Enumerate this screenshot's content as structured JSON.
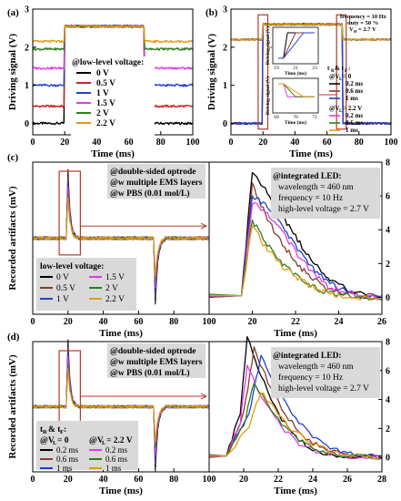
{
  "colors": {
    "black": "#000000",
    "red": "#cc2222",
    "blue": "#1f3fd6",
    "magenta": "#e23ae2",
    "green": "#2e7d1e",
    "orange": "#e69a12",
    "olive": "#8a8a1a",
    "brown": "#8b3a2a",
    "legendbg": "#d9d9d9",
    "box": "#b03a2a"
  },
  "panel_a": {
    "label": "(a)",
    "ylabel": "Driving signal (V)",
    "xlabel": "Time (ms)",
    "xticks": [
      "0",
      "20",
      "40",
      "60",
      "80",
      "100"
    ],
    "yticks": [
      "0",
      "1",
      "2",
      "3"
    ],
    "legend_title": "@low-level voltage:",
    "legend": [
      "0 V",
      "0.5 V",
      "1 V",
      "1.5 V",
      "2 V",
      "2.2 V"
    ]
  },
  "panel_b": {
    "label": "(b)",
    "ylabel": "Driving signal (V)",
    "xlabel": "Time (ms)",
    "xticks": [
      "0",
      "20",
      "40",
      "60",
      "80",
      "100"
    ],
    "yticks": [
      "0",
      "1",
      "2",
      "3"
    ],
    "info": [
      "frequency = 10 Hz",
      "duty = 50 %",
      "V",
      "= 2.7 V"
    ],
    "tr_tf": "t",
    "rise_group_a": "@V",
    "rise_a_val": "= 0",
    "rise_group_b_val": "= 2.2 V",
    "legend_a": [
      "0.2 ms",
      "0.6 ms",
      "1 ms"
    ],
    "legend_b": [
      "0.2 ms",
      "0.6 ms",
      "1 ms"
    ],
    "inset1_xticks": [
      "19",
      "21",
      "23"
    ],
    "inset2_xticks": [
      "69",
      "70",
      "72"
    ],
    "inset_xlabel": "Time (ms)",
    "inset_ylabel": "Driving signal (V)"
  },
  "panel_c": {
    "label": "(c)",
    "ylabel": "Recorded artifacts (mV)",
    "xlabel": "Time (ms)",
    "left_xticks": [
      "0",
      "20",
      "40",
      "60",
      "80",
      "100"
    ],
    "right_xticks": [
      "20",
      "22",
      "24",
      "26"
    ],
    "yticks": [
      "0",
      "2",
      "4",
      "6",
      "8"
    ],
    "note": [
      "@double-sided optrode",
      "@w multiple EMS layers",
      "@w PBS (0.01 mol/L)"
    ],
    "led": [
      "@integrated LED:",
      "wavelength = 460 nm",
      "frequency = 10 Hz",
      "high-level voltage = 2.7 V"
    ],
    "legend_title": "low-level voltage:",
    "legend": [
      "0 V",
      "0.5 V",
      "1 V",
      "1.5 V",
      "2 V",
      "2.2 V"
    ]
  },
  "panel_d": {
    "label": "(d)",
    "ylabel": "Recorded artifacts (mV)",
    "xlabel": "Time (ms)",
    "left_xticks": [
      "0",
      "20",
      "40",
      "60",
      "80",
      "100"
    ],
    "right_xticks": [
      "20",
      "22",
      "24",
      "26",
      "28"
    ],
    "yticks": [
      "0",
      "2",
      "4",
      "6",
      "8"
    ],
    "note": [
      "@double-sided optrode",
      "@w multiple EMS layers",
      "@w PBS (0.01 mol/L)"
    ],
    "led": [
      "@integrated LED:",
      "wavelength = 460 nm",
      "frequency = 10 Hz",
      "high-level voltage = 2.7 V"
    ],
    "legend_title": "t",
    "legend_a": [
      "0.2 ms",
      "0.6 ms",
      "1 ms"
    ],
    "legend_b": [
      "0.2 ms",
      "0.6 ms",
      "1 ms"
    ]
  },
  "chart_data": [
    {
      "type": "line",
      "panel": "a",
      "xlabel": "Time (ms)",
      "ylabel": "Driving signal (V)",
      "xlim": [
        0,
        100
      ],
      "ylim": [
        -0.3,
        3.0
      ],
      "series": [
        {
          "name": "0 V",
          "low": 0.0,
          "high": 2.55
        },
        {
          "name": "0.5 V",
          "low": 0.45,
          "high": 2.55
        },
        {
          "name": "1 V",
          "low": 1.0,
          "high": 2.55
        },
        {
          "name": "1.5 V",
          "low": 1.45,
          "high": 2.55
        },
        {
          "name": "2 V",
          "low": 1.95,
          "high": 2.55
        },
        {
          "name": "2.2 V",
          "low": 2.15,
          "high": 2.55
        }
      ],
      "on_ms": 20,
      "off_ms": 70
    },
    {
      "type": "line",
      "panel": "b",
      "xlabel": "Time (ms)",
      "ylabel": "Driving signal (V)",
      "xlim": [
        0,
        100
      ],
      "ylim": [
        -0.3,
        3.0
      ],
      "series": [
        {
          "name": "0.2 ms",
          "low": 0.0,
          "high": 2.6
        },
        {
          "name": "0.6 ms",
          "low": 0.0,
          "high": 2.6
        },
        {
          "name": "1 ms",
          "low": 0.0,
          "high": 2.6
        },
        {
          "name": "0.2 ms",
          "low": 2.2,
          "high": 2.6
        },
        {
          "name": "0.6 ms",
          "low": 2.2,
          "high": 2.6
        },
        {
          "name": "1 ms",
          "low": 2.2,
          "high": 2.6
        }
      ],
      "on_ms": 20,
      "off_ms": 70
    },
    {
      "type": "line",
      "panel": "c",
      "xlabel": "Time (ms)",
      "ylabel": "Recorded artifacts (mV)",
      "left_xlim": [
        0,
        100
      ],
      "right_xlim": [
        18,
        26
      ],
      "ylim": [
        -1,
        8
      ],
      "x": [
        19.5,
        20,
        20.5,
        21,
        21.5,
        22,
        22.5,
        23,
        23.5,
        24,
        25,
        26
      ],
      "series": [
        {
          "name": "0 V",
          "values": [
            0.1,
            7.4,
            6.6,
            5.6,
            4.6,
            3.6,
            2.7,
            1.9,
            1.2,
            0.7,
            0.2,
            0.0
          ]
        },
        {
          "name": "0.5 V",
          "values": [
            0.1,
            6.6,
            5.2,
            3.9,
            3.0,
            2.1,
            1.4,
            0.9,
            0.5,
            0.3,
            0.1,
            0.0
          ]
        },
        {
          "name": "1 V",
          "values": [
            0.1,
            6.0,
            5.6,
            4.9,
            4.0,
            3.0,
            2.2,
            1.4,
            0.9,
            0.5,
            0.1,
            0.0
          ]
        },
        {
          "name": "1.5 V",
          "values": [
            0.1,
            5.6,
            5.2,
            4.6,
            3.7,
            2.7,
            1.9,
            1.2,
            0.7,
            0.4,
            0.1,
            0.0
          ]
        },
        {
          "name": "2 V",
          "values": [
            0.1,
            4.6,
            3.5,
            2.6,
            1.9,
            1.3,
            0.9,
            0.5,
            0.3,
            0.2,
            0.0,
            0.0
          ]
        },
        {
          "name": "2.2 V",
          "values": [
            0.1,
            4.2,
            3.2,
            2.4,
            1.7,
            1.2,
            0.8,
            0.5,
            0.3,
            0.1,
            0.0,
            0.0
          ]
        }
      ]
    },
    {
      "type": "line",
      "panel": "d",
      "xlabel": "Time (ms)",
      "ylabel": "Recorded artifacts (mV)",
      "left_xlim": [
        0,
        100
      ],
      "right_xlim": [
        18,
        28
      ],
      "ylim": [
        -1,
        8
      ],
      "series": [
        {
          "name": "0.2 ms",
          "x": [
            19,
            19.8,
            20.2,
            21,
            22,
            23,
            24,
            25,
            26,
            28
          ],
          "values": [
            0.1,
            3.0,
            8.4,
            5.6,
            3.0,
            1.4,
            0.6,
            0.2,
            0.1,
            0.0
          ]
        },
        {
          "name": "0.6 ms",
          "x": [
            19,
            20,
            20.6,
            21.4,
            22.4,
            23.4,
            24.4,
            25.4,
            26.4,
            28
          ],
          "values": [
            0.1,
            3.0,
            7.5,
            5.2,
            3.0,
            1.5,
            0.7,
            0.3,
            0.1,
            0.0
          ]
        },
        {
          "name": "1 ms",
          "x": [
            19,
            20.3,
            21.0,
            21.8,
            22.8,
            23.8,
            24.8,
            25.8,
            26.8,
            28
          ],
          "values": [
            0.1,
            3.0,
            7.0,
            5.0,
            3.0,
            1.6,
            0.8,
            0.3,
            0.1,
            0.0
          ]
        },
        {
          "name": "0.2 ms",
          "x": [
            19,
            19.8,
            20.2,
            21,
            22,
            23,
            24,
            25,
            26,
            28
          ],
          "values": [
            0.1,
            2.4,
            6.4,
            4.3,
            2.4,
            1.1,
            0.5,
            0.2,
            0.1,
            0.0
          ]
        },
        {
          "name": "0.6 ms",
          "x": [
            19,
            20,
            20.6,
            21.4,
            22.4,
            23.4,
            24.4,
            25.4,
            26.4,
            28
          ],
          "values": [
            0.1,
            2.2,
            5.2,
            3.6,
            2.1,
            1.0,
            0.5,
            0.2,
            0.1,
            0.0
          ]
        },
        {
          "name": "1 ms",
          "x": [
            19,
            20.3,
            21.0,
            21.8,
            22.8,
            23.8,
            24.8,
            25.8,
            26.8,
            28
          ],
          "values": [
            0.1,
            2.0,
            4.6,
            3.3,
            1.9,
            1.0,
            0.5,
            0.2,
            0.1,
            0.0
          ]
        }
      ]
    }
  ]
}
